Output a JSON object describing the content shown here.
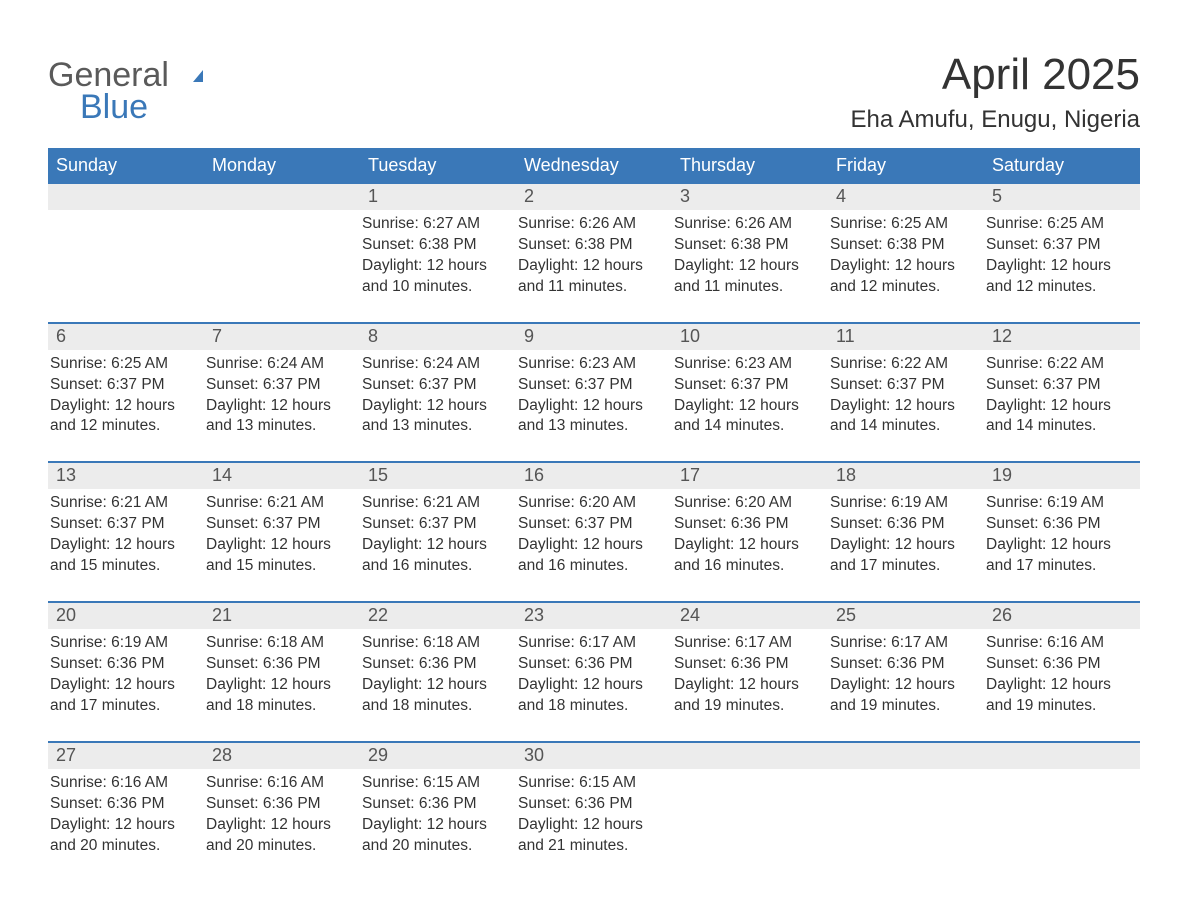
{
  "logo": {
    "top": "General",
    "bottom": "Blue",
    "flag_color": "#3a78b8"
  },
  "title": "April 2025",
  "location": "Eha Amufu, Enugu, Nigeria",
  "colors": {
    "header_bg": "#3a78b8",
    "header_text": "#ffffff",
    "daynum_bg": "#ececec",
    "row_border": "#3a78b8",
    "body_text": "#333333"
  },
  "day_headers": [
    "Sunday",
    "Monday",
    "Tuesday",
    "Wednesday",
    "Thursday",
    "Friday",
    "Saturday"
  ],
  "weeks": [
    [
      null,
      null,
      {
        "n": "1",
        "sunrise": "Sunrise: 6:27 AM",
        "sunset": "Sunset: 6:38 PM",
        "daylight": "Daylight: 12 hours and 10 minutes."
      },
      {
        "n": "2",
        "sunrise": "Sunrise: 6:26 AM",
        "sunset": "Sunset: 6:38 PM",
        "daylight": "Daylight: 12 hours and 11 minutes."
      },
      {
        "n": "3",
        "sunrise": "Sunrise: 6:26 AM",
        "sunset": "Sunset: 6:38 PM",
        "daylight": "Daylight: 12 hours and 11 minutes."
      },
      {
        "n": "4",
        "sunrise": "Sunrise: 6:25 AM",
        "sunset": "Sunset: 6:38 PM",
        "daylight": "Daylight: 12 hours and 12 minutes."
      },
      {
        "n": "5",
        "sunrise": "Sunrise: 6:25 AM",
        "sunset": "Sunset: 6:37 PM",
        "daylight": "Daylight: 12 hours and 12 minutes."
      }
    ],
    [
      {
        "n": "6",
        "sunrise": "Sunrise: 6:25 AM",
        "sunset": "Sunset: 6:37 PM",
        "daylight": "Daylight: 12 hours and 12 minutes."
      },
      {
        "n": "7",
        "sunrise": "Sunrise: 6:24 AM",
        "sunset": "Sunset: 6:37 PM",
        "daylight": "Daylight: 12 hours and 13 minutes."
      },
      {
        "n": "8",
        "sunrise": "Sunrise: 6:24 AM",
        "sunset": "Sunset: 6:37 PM",
        "daylight": "Daylight: 12 hours and 13 minutes."
      },
      {
        "n": "9",
        "sunrise": "Sunrise: 6:23 AM",
        "sunset": "Sunset: 6:37 PM",
        "daylight": "Daylight: 12 hours and 13 minutes."
      },
      {
        "n": "10",
        "sunrise": "Sunrise: 6:23 AM",
        "sunset": "Sunset: 6:37 PM",
        "daylight": "Daylight: 12 hours and 14 minutes."
      },
      {
        "n": "11",
        "sunrise": "Sunrise: 6:22 AM",
        "sunset": "Sunset: 6:37 PM",
        "daylight": "Daylight: 12 hours and 14 minutes."
      },
      {
        "n": "12",
        "sunrise": "Sunrise: 6:22 AM",
        "sunset": "Sunset: 6:37 PM",
        "daylight": "Daylight: 12 hours and 14 minutes."
      }
    ],
    [
      {
        "n": "13",
        "sunrise": "Sunrise: 6:21 AM",
        "sunset": "Sunset: 6:37 PM",
        "daylight": "Daylight: 12 hours and 15 minutes."
      },
      {
        "n": "14",
        "sunrise": "Sunrise: 6:21 AM",
        "sunset": "Sunset: 6:37 PM",
        "daylight": "Daylight: 12 hours and 15 minutes."
      },
      {
        "n": "15",
        "sunrise": "Sunrise: 6:21 AM",
        "sunset": "Sunset: 6:37 PM",
        "daylight": "Daylight: 12 hours and 16 minutes."
      },
      {
        "n": "16",
        "sunrise": "Sunrise: 6:20 AM",
        "sunset": "Sunset: 6:37 PM",
        "daylight": "Daylight: 12 hours and 16 minutes."
      },
      {
        "n": "17",
        "sunrise": "Sunrise: 6:20 AM",
        "sunset": "Sunset: 6:36 PM",
        "daylight": "Daylight: 12 hours and 16 minutes."
      },
      {
        "n": "18",
        "sunrise": "Sunrise: 6:19 AM",
        "sunset": "Sunset: 6:36 PM",
        "daylight": "Daylight: 12 hours and 17 minutes."
      },
      {
        "n": "19",
        "sunrise": "Sunrise: 6:19 AM",
        "sunset": "Sunset: 6:36 PM",
        "daylight": "Daylight: 12 hours and 17 minutes."
      }
    ],
    [
      {
        "n": "20",
        "sunrise": "Sunrise: 6:19 AM",
        "sunset": "Sunset: 6:36 PM",
        "daylight": "Daylight: 12 hours and 17 minutes."
      },
      {
        "n": "21",
        "sunrise": "Sunrise: 6:18 AM",
        "sunset": "Sunset: 6:36 PM",
        "daylight": "Daylight: 12 hours and 18 minutes."
      },
      {
        "n": "22",
        "sunrise": "Sunrise: 6:18 AM",
        "sunset": "Sunset: 6:36 PM",
        "daylight": "Daylight: 12 hours and 18 minutes."
      },
      {
        "n": "23",
        "sunrise": "Sunrise: 6:17 AM",
        "sunset": "Sunset: 6:36 PM",
        "daylight": "Daylight: 12 hours and 18 minutes."
      },
      {
        "n": "24",
        "sunrise": "Sunrise: 6:17 AM",
        "sunset": "Sunset: 6:36 PM",
        "daylight": "Daylight: 12 hours and 19 minutes."
      },
      {
        "n": "25",
        "sunrise": "Sunrise: 6:17 AM",
        "sunset": "Sunset: 6:36 PM",
        "daylight": "Daylight: 12 hours and 19 minutes."
      },
      {
        "n": "26",
        "sunrise": "Sunrise: 6:16 AM",
        "sunset": "Sunset: 6:36 PM",
        "daylight": "Daylight: 12 hours and 19 minutes."
      }
    ],
    [
      {
        "n": "27",
        "sunrise": "Sunrise: 6:16 AM",
        "sunset": "Sunset: 6:36 PM",
        "daylight": "Daylight: 12 hours and 20 minutes."
      },
      {
        "n": "28",
        "sunrise": "Sunrise: 6:16 AM",
        "sunset": "Sunset: 6:36 PM",
        "daylight": "Daylight: 12 hours and 20 minutes."
      },
      {
        "n": "29",
        "sunrise": "Sunrise: 6:15 AM",
        "sunset": "Sunset: 6:36 PM",
        "daylight": "Daylight: 12 hours and 20 minutes."
      },
      {
        "n": "30",
        "sunrise": "Sunrise: 6:15 AM",
        "sunset": "Sunset: 6:36 PM",
        "daylight": "Daylight: 12 hours and 21 minutes."
      },
      null,
      null,
      null
    ]
  ]
}
